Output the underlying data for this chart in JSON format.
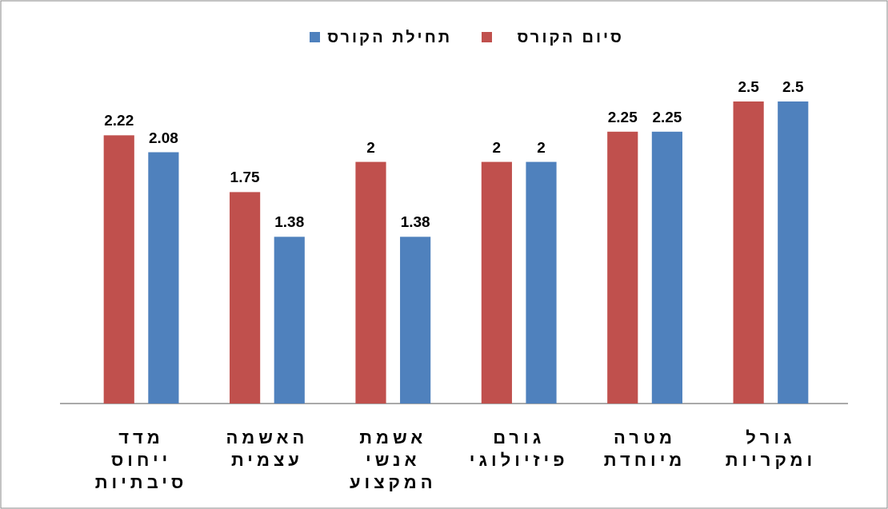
{
  "chart_data": {
    "type": "bar",
    "categories": [
      "מדד ייחוס סיבתיות",
      "האשמה עצמית",
      "אשמת אנשי המקצוע",
      "גורם פיזיולוגי",
      "מטרה מיוחדת",
      "גורל ומקריות"
    ],
    "series": [
      {
        "name": "סיום הקורס",
        "color": "#c0504d",
        "values": [
          2.22,
          1.75,
          2,
          2,
          2.25,
          2.5
        ]
      },
      {
        "name": "תחילת הקורס",
        "color": "#4f81bd",
        "values": [
          2.08,
          1.38,
          1.38,
          2,
          2.25,
          2.5
        ]
      }
    ],
    "data_labels": true,
    "legend": "top"
  }
}
